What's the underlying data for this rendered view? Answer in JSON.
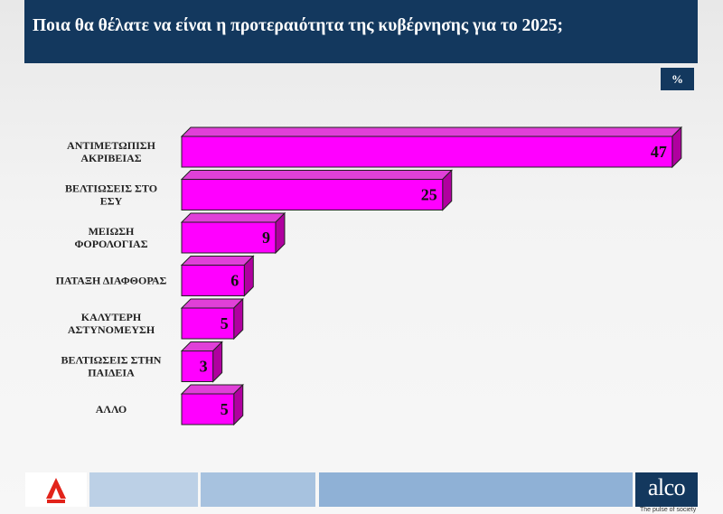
{
  "header": {
    "title": "Ποια θα θέλατε να είναι η προτεραιότητα της κυβέρνησης για το 2025;"
  },
  "unit_label": "%",
  "chart_data": {
    "type": "bar",
    "orientation": "horizontal",
    "title": "Ποια θα θέλατε να είναι η προτεραιότητα της κυβέρνησης για το 2025;",
    "unit": "%",
    "categories": [
      [
        "ΑΝΤΙΜΕΤΩΠΙΣΗ",
        "ΑΚΡΙΒΕΙΑΣ"
      ],
      [
        "ΒΕΛΤΙΩΣΕΙΣ ΣΤΟ",
        "ΕΣΥ"
      ],
      [
        "ΜΕΙΩΣΗ",
        "ΦΟΡΟΛΟΓΙΑΣ"
      ],
      [
        "ΠΑΤΑΞΗ ΔΙΑΦΘΟΡΑΣ"
      ],
      [
        "ΚΑΛΥΤΕΡΗ",
        "ΑΣΤΥΝΟΜΕΥΣΗ"
      ],
      [
        "ΒΕΛΤΙΩΣΕΙΣ ΣΤΗΝ",
        "ΠΑΙΔΕΙΑ"
      ],
      [
        "ΑΛΛΟ"
      ]
    ],
    "values": [
      47,
      25,
      9,
      6,
      5,
      3,
      5
    ],
    "bar_color": "#ff00ff",
    "bar_side_color": "#b0009f",
    "bar_top_color": "#e040d8",
    "grid": false,
    "legend": "none"
  },
  "footer": {
    "left_logo": "alpha-news-logo",
    "brand": "alco",
    "tagline": "The pulse of society",
    "strip_colors": [
      "#bcd0e6",
      "#a7c2df",
      "#8fb1d6"
    ]
  }
}
